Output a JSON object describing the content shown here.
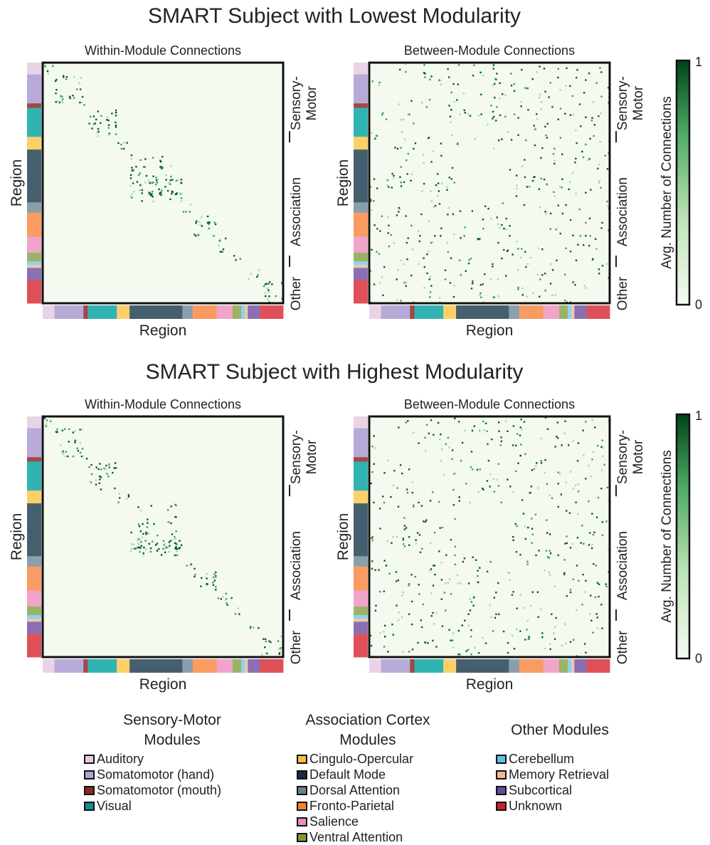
{
  "chart_data": [
    {
      "type": "heatmap",
      "title": "SMART Subject with Lowest Modularity",
      "panels": [
        {
          "subtitle": "Within-Module Connections",
          "xlabel": "Region",
          "ylabel": "Region",
          "variant": "within",
          "seed": 11
        },
        {
          "subtitle": "Between-Module Connections",
          "xlabel": "Region",
          "ylabel": "Region",
          "variant": "between",
          "seed": 23
        }
      ],
      "colorbar": {
        "label": "Avg. Number of Connections",
        "min": "0",
        "max": "1"
      }
    },
    {
      "type": "heatmap",
      "title": "SMART Subject with Highest Modularity",
      "panels": [
        {
          "subtitle": "Within-Module Connections",
          "xlabel": "Region",
          "ylabel": "Region",
          "variant": "within",
          "seed": 37
        },
        {
          "subtitle": "Between-Module Connections",
          "xlabel": "Region",
          "ylabel": "Region",
          "variant": "between",
          "seed": 53
        }
      ],
      "colorbar": {
        "label": "Avg. Number of Connections",
        "min": "0",
        "max": "1"
      }
    }
  ],
  "group_labels": {
    "sensory_line1": "Sensory-",
    "sensory_line2": "Motor",
    "association": "Association",
    "other": "Other"
  },
  "modules": [
    {
      "name": "Auditory",
      "swatch": "#f0c8e6",
      "bar": "#ead3e6",
      "size": 0.048
    },
    {
      "name": "Somatomotor (hand)",
      "swatch": "#b0a0d8",
      "bar": "#b8aad8",
      "size": 0.118
    },
    {
      "name": "Somatomotor (mouth)",
      "swatch": "#8a2a20",
      "bar": "#a04a42",
      "size": 0.018
    },
    {
      "name": "Visual",
      "swatch": "#0e8f8f",
      "bar": "#31b3b3",
      "size": 0.118
    },
    {
      "name": "Cingulo-Opercular",
      "swatch": "#f8c040",
      "bar": "#fbd068",
      "size": 0.052
    },
    {
      "name": "Default Mode",
      "swatch": "#1a2a3c",
      "bar": "#455f6e",
      "size": 0.215
    },
    {
      "name": "Dorsal Attention",
      "swatch": "#6a8290",
      "bar": "#8a9faa",
      "size": 0.042
    },
    {
      "name": "Fronto-Parietal",
      "swatch": "#f58030",
      "bar": "#fa9b62",
      "size": 0.098
    },
    {
      "name": "Salience",
      "swatch": "#ee88c0",
      "bar": "#f1a4c9",
      "size": 0.065
    },
    {
      "name": "Ventral Attention",
      "swatch": "#7a9a30",
      "bar": "#9ab365",
      "size": 0.035
    },
    {
      "name": "Cerebellum",
      "swatch": "#60c0e8",
      "bar": "#8bd4ee",
      "size": 0.015
    },
    {
      "name": "Memory Retrieval",
      "swatch": "#f0b890",
      "bar": "#f4c7a8",
      "size": 0.012
    },
    {
      "name": "Subcortical",
      "swatch": "#6a4a9a",
      "bar": "#8a70b2",
      "size": 0.05
    },
    {
      "name": "Unknown",
      "swatch": "#cc2028",
      "bar": "#e05058",
      "size": 0.094
    }
  ],
  "groups": [
    {
      "title_line1": "Sensory-Motor",
      "title_line2": "Modules",
      "members": [
        0,
        1,
        2,
        3
      ]
    },
    {
      "title_line1": "Association Cortex",
      "title_line2": "Modules",
      "members": [
        4,
        5,
        6,
        7,
        8,
        9
      ]
    },
    {
      "title_line1": "Other Modules",
      "title_line2": "",
      "members": [
        10,
        11,
        12,
        13
      ]
    }
  ],
  "colors": {
    "background": "#f4faf0",
    "cell_light": "#a7d8a2",
    "cell_mid": "#3aa05a",
    "cell_dark": "#0a5a2a",
    "frame": "#111111"
  }
}
